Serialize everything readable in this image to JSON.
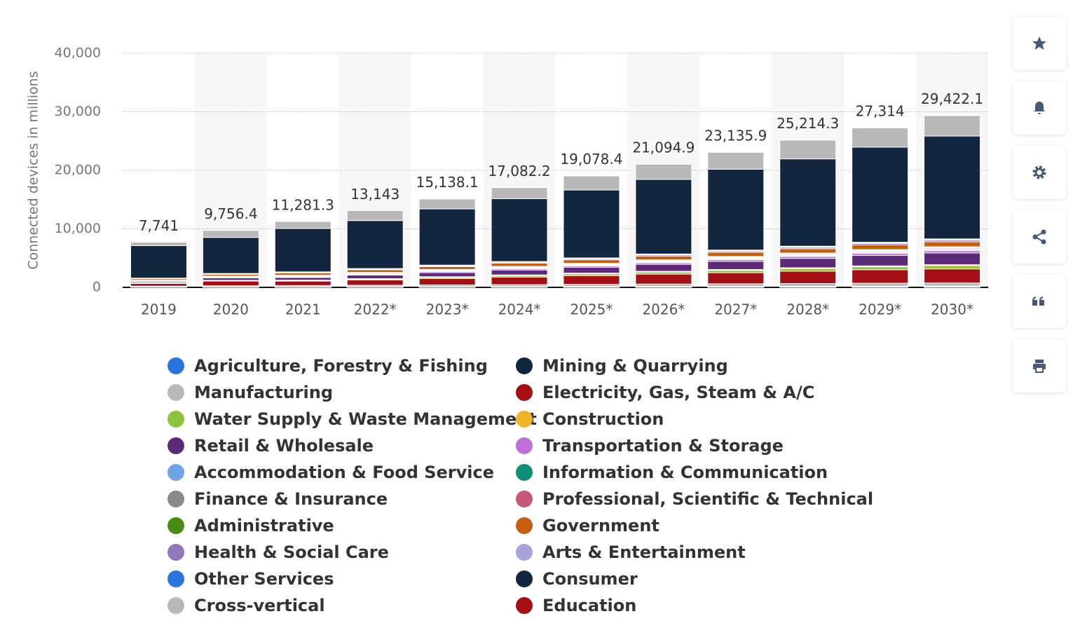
{
  "chart_data": {
    "type": "stacked_bar",
    "y_label": "Connected devices in millions",
    "categories": [
      "2019",
      "2020",
      "2021",
      "2022*",
      "2023*",
      "2024*",
      "2025*",
      "2026*",
      "2027*",
      "2028*",
      "2029*",
      "2030*"
    ],
    "ylim": [
      0,
      40000
    ],
    "yticks": [
      0,
      {
        "value": 10000,
        "label": "10,000"
      },
      {
        "value": 20000,
        "label": "20,000"
      },
      {
        "value": 30000,
        "label": "30,000"
      },
      {
        "value": 40000,
        "label": "40,000"
      }
    ],
    "grid": true,
    "totals": [
      7741,
      9756.4,
      11281.3,
      13143,
      15138.1,
      17082.2,
      19078.4,
      21094.9,
      23135.9,
      25214.3,
      27314,
      29422.1
    ],
    "total_labels": [
      "7,741",
      "9,756.4",
      "11,281.3",
      "13,143",
      "15,138.1",
      "17,082.2",
      "19,078.4",
      "21,094.9",
      "23,135.9",
      "25,214.3",
      "27,314",
      "29,422.1"
    ],
    "series": [
      {
        "name": "Agriculture, Forestry & Fishing",
        "color": "#2876dd",
        "values": [
          40,
          50,
          60,
          70,
          80,
          90,
          100,
          110,
          120,
          130,
          140,
          150
        ]
      },
      {
        "name": "Mining & Quarrying",
        "color": "#0f2741",
        "values": [
          20,
          25,
          30,
          35,
          40,
          45,
          50,
          55,
          60,
          65,
          70,
          75
        ]
      },
      {
        "name": "Manufacturing",
        "color": "#b8b8b8",
        "values": [
          150,
          200,
          230,
          260,
          300,
          330,
          360,
          400,
          430,
          460,
          500,
          530
        ]
      },
      {
        "name": "Electricity, Gas, Steam & A/C",
        "color": "#a30f15",
        "values": [
          450,
          800,
          750,
          900,
          1100,
          1300,
          1500,
          1700,
          1900,
          2100,
          2300,
          2400
        ]
      },
      {
        "name": "Water Supply & Waste Management",
        "color": "#8fc33a",
        "values": [
          60,
          80,
          100,
          150,
          200,
          250,
          300,
          350,
          400,
          450,
          500,
          550
        ]
      },
      {
        "name": "Construction",
        "color": "#f0b429",
        "values": [
          50,
          60,
          70,
          80,
          100,
          110,
          120,
          130,
          140,
          150,
          160,
          170
        ]
      },
      {
        "name": "Retail & Wholesale",
        "color": "#5d2a7a",
        "values": [
          200,
          400,
          450,
          600,
          700,
          850,
          1000,
          1200,
          1400,
          1600,
          1800,
          2000
        ]
      },
      {
        "name": "Transportation & Storage",
        "color": "#c16fdd",
        "values": [
          80,
          100,
          120,
          150,
          180,
          210,
          240,
          270,
          300,
          330,
          360,
          390
        ]
      },
      {
        "name": "Accommodation & Food Service",
        "color": "#6fa4e6",
        "values": [
          40,
          50,
          60,
          70,
          80,
          90,
          100,
          110,
          120,
          130,
          140,
          150
        ]
      },
      {
        "name": "Information & Communication",
        "color": "#0e8f75",
        "values": [
          40,
          50,
          60,
          70,
          80,
          90,
          100,
          110,
          120,
          130,
          140,
          150
        ]
      },
      {
        "name": "Finance & Insurance",
        "color": "#8a8a8a",
        "values": [
          30,
          40,
          50,
          60,
          70,
          80,
          90,
          100,
          110,
          120,
          130,
          140
        ]
      },
      {
        "name": "Professional, Scientific & Technical",
        "color": "#c9577a",
        "values": [
          40,
          50,
          60,
          70,
          80,
          90,
          100,
          110,
          120,
          130,
          140,
          150
        ]
      },
      {
        "name": "Administrative",
        "color": "#478c15",
        "values": [
          20,
          25,
          30,
          35,
          40,
          45,
          50,
          55,
          60,
          65,
          70,
          75
        ]
      },
      {
        "name": "Government",
        "color": "#c65f10",
        "values": [
          250,
          300,
          400,
          450,
          500,
          550,
          600,
          650,
          700,
          750,
          800,
          850
        ]
      },
      {
        "name": "Health & Social Care",
        "color": "#9476bd",
        "values": [
          60,
          80,
          100,
          120,
          140,
          160,
          180,
          200,
          220,
          240,
          260,
          280
        ]
      },
      {
        "name": "Arts & Entertainment",
        "color": "#a7a5d8",
        "values": [
          30,
          40,
          50,
          60,
          70,
          80,
          90,
          100,
          110,
          120,
          130,
          140
        ]
      },
      {
        "name": "Other Services",
        "color": "#2876dd",
        "values": [
          20,
          25,
          30,
          35,
          40,
          45,
          50,
          55,
          60,
          65,
          70,
          75
        ]
      },
      {
        "name": "Consumer",
        "color": "#12263f",
        "values": [
          5551,
          6166.4,
          7411.3,
          8203,
          9608.1,
          10732.2,
          11608.4,
          12744.9,
          13815.9,
          14924.3,
          16244,
          17582.1
        ]
      },
      {
        "name": "Cross-vertical",
        "color": "#b8b8b8",
        "values": [
          600,
          1200,
          1200,
          1700,
          1700,
          1900,
          2400,
          2600,
          2900,
          3200,
          3300,
          3500
        ]
      },
      {
        "name": "Education",
        "color": "#a30f15",
        "values": [
          10,
          15,
          20,
          25,
          30,
          35,
          40,
          45,
          50,
          55,
          60,
          65
        ]
      }
    ]
  }
}
